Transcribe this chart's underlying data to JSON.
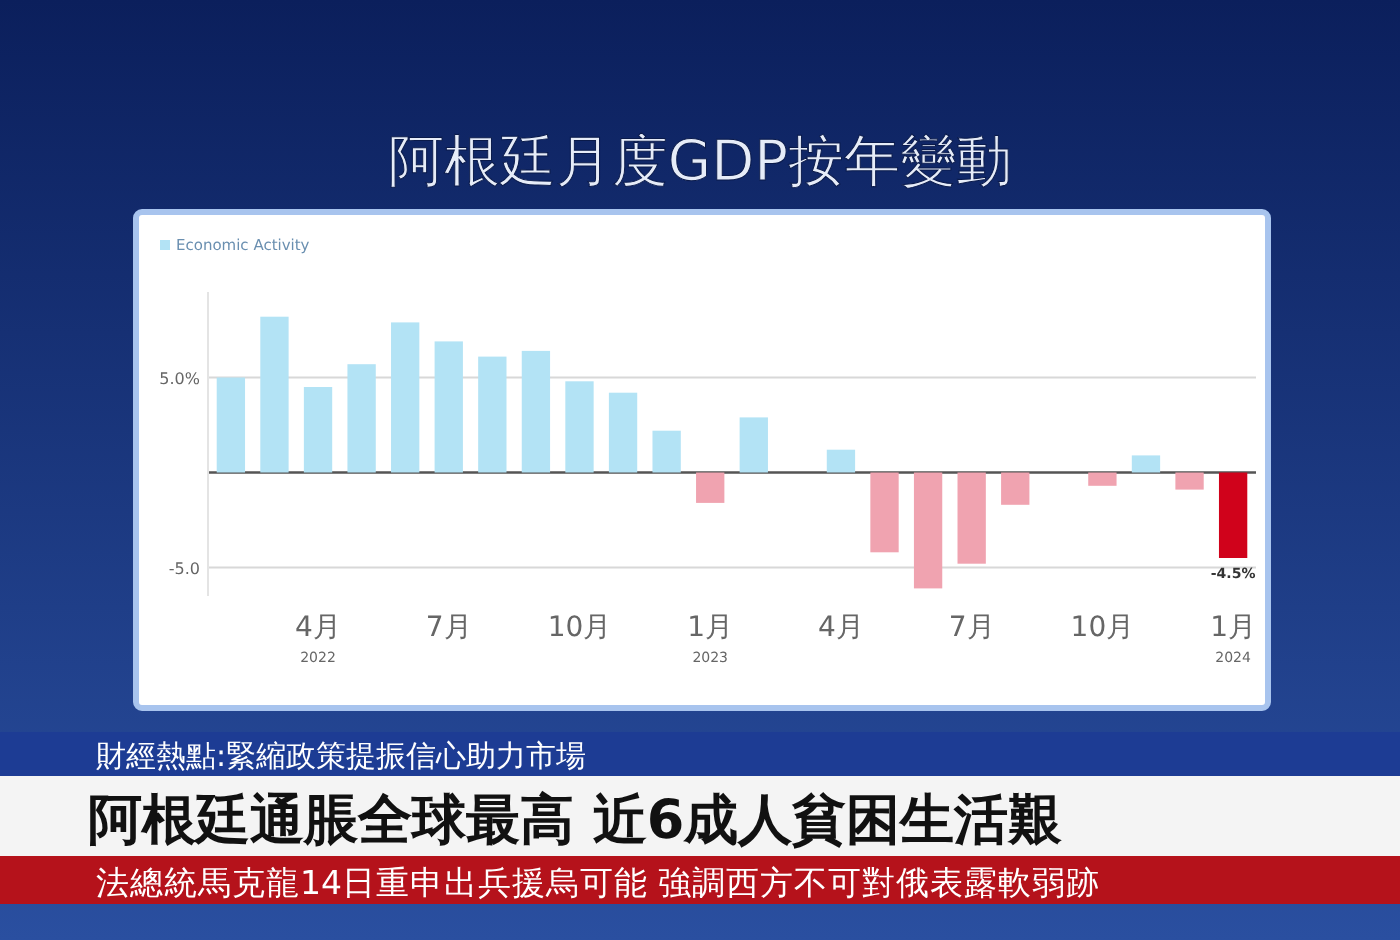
{
  "chart_data": {
    "type": "bar",
    "title": "阿根廷月度GDP按年變動",
    "categories": [
      null,
      null,
      "4月\n2022",
      null,
      null,
      "7月",
      null,
      null,
      "10月",
      null,
      null,
      "1月\n2023",
      null,
      null,
      "4月",
      null,
      null,
      "7月",
      null,
      null,
      "10月",
      null,
      null,
      "1月\n2024"
    ],
    "series": [
      {
        "name": "Economic Activity",
        "color": "#b3e3f5",
        "values": [
          5.0,
          8.2,
          4.5,
          5.7,
          7.9,
          6.9,
          6.1,
          6.4,
          4.8,
          4.2,
          2.2,
          -1.6,
          2.9,
          null,
          1.2,
          -4.2,
          -6.1,
          -4.8,
          -1.7,
          null,
          -0.7,
          0.9,
          -0.9,
          -4.5
        ],
        "colors": [
          "#b3e3f5",
          "#b3e3f5",
          "#b3e3f5",
          "#b3e3f5",
          "#b3e3f5",
          "#b3e3f5",
          "#b3e3f5",
          "#b3e3f5",
          "#b3e3f5",
          "#b3e3f5",
          "#b3e3f5",
          "#f0a3b0",
          "#b3e3f5",
          null,
          "#b3e3f5",
          "#f0a3b0",
          "#f0a3b0",
          "#f0a3b0",
          "#f0a3b0",
          null,
          "#f0a3b0",
          "#b3e3f5",
          "#f0a3b0",
          "#d0021b"
        ],
        "value_labels": [
          null,
          null,
          null,
          null,
          null,
          null,
          null,
          null,
          null,
          null,
          null,
          null,
          null,
          null,
          null,
          null,
          null,
          null,
          null,
          null,
          null,
          null,
          null,
          "-4.5%"
        ]
      }
    ],
    "ylim": [
      -6.5,
      9.5
    ],
    "yticks": [
      {
        "value": -5,
        "label": "-5.0"
      },
      {
        "value": 0,
        "label": null
      },
      {
        "value": 5,
        "label": "5.0%"
      }
    ],
    "grid": "y",
    "legend": "top left",
    "annotations": [
      "財經熱點:緊縮政策提振信心助力市場",
      "阿根廷通脹全球最高 近6成人貧困生活艱",
      "法總統馬克龍14日重申出兵援烏可能 強調西方不可對俄表露軟弱跡"
    ]
  }
}
